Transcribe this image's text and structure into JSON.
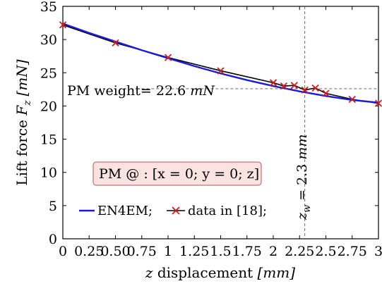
{
  "chart_data": {
    "type": "line",
    "xlabel_var": "z",
    "xlabel_rest": " displacement ",
    "xlabel_unit": "[mm]",
    "ylabel_text": "Lift force ",
    "ylabel_var": "F",
    "ylabel_sub": "z",
    "ylabel_unit": "[mN]",
    "xlim": [
      0,
      3
    ],
    "ylim": [
      0,
      35
    ],
    "xticks": [
      0,
      0.25,
      0.5,
      0.75,
      1,
      1.25,
      1.5,
      1.75,
      2,
      2.25,
      2.5,
      2.75,
      3
    ],
    "xtick_labels": [
      "0",
      "0.25",
      "0.50",
      "0.75",
      "1",
      "1.25",
      "1.5",
      "1.75",
      "2",
      "2.25",
      "2.5",
      "2.75",
      "3"
    ],
    "yticks": [
      0,
      5,
      10,
      15,
      20,
      25,
      30,
      35
    ],
    "ytick_labels": [
      "0",
      "5",
      "10",
      "15",
      "20",
      "25",
      "30",
      "35"
    ],
    "grid": false,
    "legend_position": "bottom-left",
    "series": [
      {
        "name": "EN4EM;",
        "color": "#1a1adb",
        "marker": "none",
        "x": [
          0,
          0.25,
          0.5,
          0.75,
          1,
          1.25,
          1.5,
          1.75,
          2,
          2.25,
          2.5,
          2.75,
          3
        ],
        "y": [
          32.4,
          31.0,
          29.7,
          28.4,
          27.2,
          26.0,
          24.9,
          23.9,
          23.0,
          22.2,
          21.5,
          20.9,
          20.5
        ]
      },
      {
        "name": "data in [18];",
        "color": "#d61a1a",
        "line_color": "#000000",
        "marker": "x",
        "x": [
          0,
          0.5,
          1,
          1.5,
          2,
          2.1,
          2.2,
          2.3,
          2.4,
          2.5,
          2.75,
          3
        ],
        "y": [
          32.2,
          29.5,
          27.3,
          25.3,
          23.5,
          23.0,
          23.1,
          22.4,
          22.7,
          21.9,
          21.0,
          20.4
        ]
      }
    ],
    "annotations": {
      "weight_label": "PM weight= 22.6 ",
      "weight_unit": "mN",
      "weight_value": 22.6,
      "zw_value": 2.3,
      "zw_label": "z",
      "zw_sub": "w",
      "zw_rest": " = 2.3 ",
      "zw_unit": "mm",
      "pm_box": "PM @ : [x = 0; y = 0; z]"
    }
  }
}
